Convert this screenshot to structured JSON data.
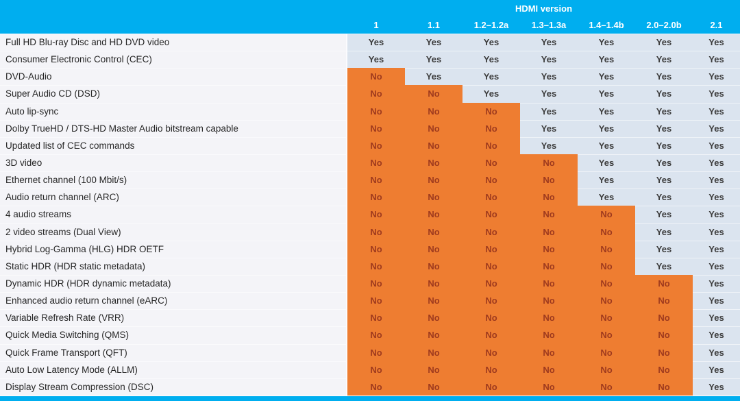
{
  "chart_data": {
    "type": "table",
    "title": "HDMI version",
    "columns": [
      "1",
      "1.1",
      "1.2–1.2a",
      "1.3–1.3a",
      "1.4–1.4b",
      "2.0–2.0b",
      "2.1"
    ],
    "value_labels": {
      "supported": "Yes",
      "unsupported": "No"
    },
    "rows": [
      {
        "feature": "Full HD Blu-ray Disc and HD DVD video",
        "values": [
          "Yes",
          "Yes",
          "Yes",
          "Yes",
          "Yes",
          "Yes",
          "Yes"
        ]
      },
      {
        "feature": "Consumer Electronic Control (CEC)",
        "values": [
          "Yes",
          "Yes",
          "Yes",
          "Yes",
          "Yes",
          "Yes",
          "Yes"
        ]
      },
      {
        "feature": "DVD-Audio",
        "values": [
          "No",
          "Yes",
          "Yes",
          "Yes",
          "Yes",
          "Yes",
          "Yes"
        ]
      },
      {
        "feature": "Super Audio CD (DSD)",
        "values": [
          "No",
          "No",
          "Yes",
          "Yes",
          "Yes",
          "Yes",
          "Yes"
        ]
      },
      {
        "feature": "Auto lip-sync",
        "values": [
          "No",
          "No",
          "No",
          "Yes",
          "Yes",
          "Yes",
          "Yes"
        ]
      },
      {
        "feature": "Dolby TrueHD / DTS-HD Master Audio bitstream capable",
        "values": [
          "No",
          "No",
          "No",
          "Yes",
          "Yes",
          "Yes",
          "Yes"
        ]
      },
      {
        "feature": "Updated list of CEC commands",
        "values": [
          "No",
          "No",
          "No",
          "Yes",
          "Yes",
          "Yes",
          "Yes"
        ]
      },
      {
        "feature": "3D video",
        "values": [
          "No",
          "No",
          "No",
          "No",
          "Yes",
          "Yes",
          "Yes"
        ]
      },
      {
        "feature": "Ethernet channel (100 Mbit/s)",
        "values": [
          "No",
          "No",
          "No",
          "No",
          "Yes",
          "Yes",
          "Yes"
        ]
      },
      {
        "feature": "Audio return channel (ARC)",
        "values": [
          "No",
          "No",
          "No",
          "No",
          "Yes",
          "Yes",
          "Yes"
        ]
      },
      {
        "feature": "4 audio streams",
        "values": [
          "No",
          "No",
          "No",
          "No",
          "No",
          "Yes",
          "Yes"
        ]
      },
      {
        "feature": "2 video streams (Dual View)",
        "values": [
          "No",
          "No",
          "No",
          "No",
          "No",
          "Yes",
          "Yes"
        ]
      },
      {
        "feature": "Hybrid Log-Gamma (HLG) HDR OETF",
        "values": [
          "No",
          "No",
          "No",
          "No",
          "No",
          "Yes",
          "Yes"
        ]
      },
      {
        "feature": "Static HDR (HDR static metadata)",
        "values": [
          "No",
          "No",
          "No",
          "No",
          "No",
          "Yes",
          "Yes"
        ]
      },
      {
        "feature": "Dynamic HDR (HDR dynamic metadata)",
        "values": [
          "No",
          "No",
          "No",
          "No",
          "No",
          "No",
          "Yes"
        ]
      },
      {
        "feature": "Enhanced audio return channel (eARC)",
        "values": [
          "No",
          "No",
          "No",
          "No",
          "No",
          "No",
          "Yes"
        ]
      },
      {
        "feature": "Variable Refresh Rate (VRR)",
        "values": [
          "No",
          "No",
          "No",
          "No",
          "No",
          "No",
          "Yes"
        ]
      },
      {
        "feature": "Quick Media Switching (QMS)",
        "values": [
          "No",
          "No",
          "No",
          "No",
          "No",
          "No",
          "Yes"
        ]
      },
      {
        "feature": "Quick Frame Transport (QFT)",
        "values": [
          "No",
          "No",
          "No",
          "No",
          "No",
          "No",
          "Yes"
        ]
      },
      {
        "feature": "Auto Low Latency Mode (ALLM)",
        "values": [
          "No",
          "No",
          "No",
          "No",
          "No",
          "No",
          "Yes"
        ]
      },
      {
        "feature": "Display Stream Compression (DSC)",
        "values": [
          "No",
          "No",
          "No",
          "No",
          "No",
          "No",
          "Yes"
        ]
      }
    ]
  },
  "colors": {
    "header_bg": "#00AEEF",
    "yes_bg": "#DBE4EF",
    "no_bg": "#EE7D31",
    "label_bg": "#F4F4F8",
    "yes_text": "#3C3C3C",
    "no_text": "#9E3A1E",
    "label_text": "#262626",
    "header_text": "#FFFFFF",
    "bottom_bar": "#00AEEF"
  }
}
